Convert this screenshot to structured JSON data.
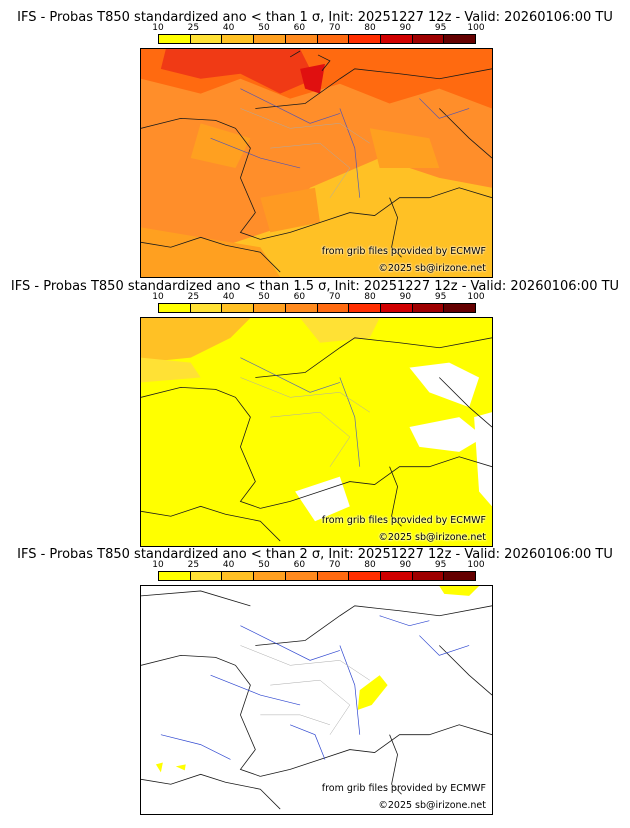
{
  "colorbar": {
    "tick_labels": [
      "10",
      "25",
      "40",
      "50",
      "60",
      "70",
      "80",
      "90",
      "95",
      "100"
    ],
    "colors": [
      "#ffff00",
      "#ffe135",
      "#ffc125",
      "#ffa020",
      "#ff8a1e",
      "#ff6a10",
      "#ff2e00",
      "#d00000",
      "#9e0000",
      "#640000"
    ]
  },
  "panels": [
    {
      "title": "IFS - Probas T850  standardized ano < than 1 σ, Init: 20251227 12z - Valid: 20260106:00 TU",
      "source_note": "from grib files provided by ECMWF",
      "copyright": "©2025 sb@irizone.net"
    },
    {
      "title": "IFS - Probas T850  standardized ano < than 1.5 σ, Init: 20251227 12z - Valid: 20260106:00 TU",
      "source_note": "from grib files provided by ECMWF",
      "copyright": "©2025 sb@irizone.net"
    },
    {
      "title": "IFS - Probas T850  standardized ano < than 2 σ, Init: 20251227 12z - Valid: 20260106:00 TU",
      "source_note": "from grib files provided by ECMWF",
      "copyright": "©2025 sb@irizone.net"
    }
  ]
}
